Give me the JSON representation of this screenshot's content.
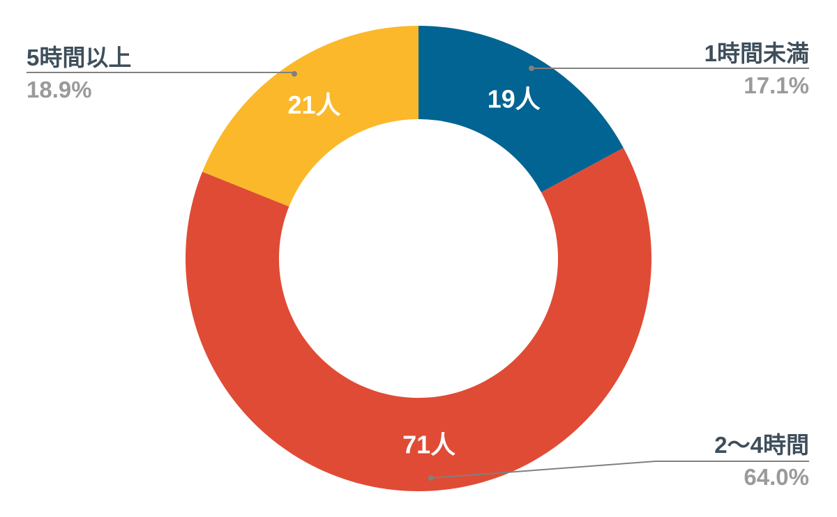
{
  "chart_data": {
    "type": "pie",
    "donut": true,
    "slices": [
      {
        "label": "1時間未満",
        "count": 19,
        "count_label": "19人",
        "percent_label": "17.1%",
        "color": "#026493"
      },
      {
        "label": "2〜4時間",
        "count": 71,
        "count_label": "71人",
        "percent_label": "64.0%",
        "color": "#e04b35"
      },
      {
        "label": "5時間以上",
        "count": 21,
        "count_label": "21人",
        "percent_label": "18.9%",
        "color": "#fbb82a"
      }
    ],
    "legend": "callouts",
    "leader_line_color": "#808080"
  }
}
